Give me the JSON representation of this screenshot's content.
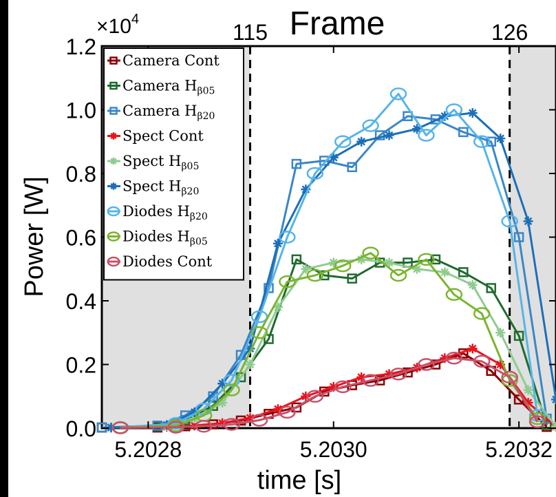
{
  "chart_data": {
    "type": "line",
    "title": "Frame",
    "xlabel": "time [s]",
    "ylabel": "Power [W]",
    "y_multiplier_label": "×10",
    "y_multiplier_exponent": "4",
    "xlim": [
      5.20275,
      5.20324
    ],
    "ylim": [
      0,
      12000
    ],
    "x_ticks": [
      5.2028,
      5.203,
      5.2032
    ],
    "x_tick_labels": [
      "5.2028",
      "5.2030",
      "5.2032"
    ],
    "y_ticks": [
      0,
      2000,
      4000,
      6000,
      8000,
      10000,
      12000
    ],
    "y_tick_labels": [
      "0.0",
      "0.2",
      "0.4",
      "0.6",
      "0.8",
      "1.0",
      "1.2"
    ],
    "grid": false,
    "frame_markers": [
      {
        "label": "115",
        "x": 5.20291
      },
      {
        "label": "126",
        "x": 5.20319
      }
    ],
    "shaded_regions": [
      {
        "x0": 5.20275,
        "x1": 5.20291,
        "color": "#e0e0e0"
      },
      {
        "x0": 5.20319,
        "x1": 5.20324,
        "color": "#e0e0e0"
      }
    ],
    "legend": {
      "position": "top-left"
    },
    "series": [
      {
        "name": "Camera Cont",
        "label_main": "Camera Cont",
        "label_sub": "",
        "color": "#8b0000",
        "marker": "square",
        "x": [
          5.20275,
          5.20281,
          5.20284,
          5.20287,
          5.2029,
          5.20293,
          5.20296,
          5.20299,
          5.20302,
          5.20305,
          5.20308,
          5.20311,
          5.20314,
          5.20317,
          5.2032,
          5.20323
        ],
        "y": [
          20,
          20,
          60,
          120,
          240,
          450,
          650,
          1150,
          1350,
          1500,
          1750,
          2000,
          2350,
          1800,
          900,
          40
        ]
      },
      {
        "name": "Camera Hβ05",
        "label_main": "Camera H",
        "label_sub": "β05",
        "color": "#1e6b2e",
        "marker": "square",
        "x": [
          5.20275,
          5.20281,
          5.20284,
          5.20287,
          5.2029,
          5.20293,
          5.20296,
          5.20299,
          5.20302,
          5.20305,
          5.20308,
          5.20311,
          5.20314,
          5.20317,
          5.2032,
          5.20323
        ],
        "y": [
          20,
          50,
          250,
          700,
          1600,
          2800,
          5300,
          4800,
          4700,
          5200,
          5200,
          5300,
          4900,
          4400,
          2900,
          100
        ]
      },
      {
        "name": "Camera Hβ20",
        "label_main": "Camera H",
        "label_sub": "β20",
        "color": "#3a86c8",
        "marker": "square",
        "x": [
          5.20275,
          5.20281,
          5.20284,
          5.20287,
          5.2029,
          5.20293,
          5.20296,
          5.20299,
          5.20302,
          5.20305,
          5.20308,
          5.20311,
          5.20314,
          5.20317,
          5.2032,
          5.20323
        ],
        "y": [
          20,
          80,
          400,
          1000,
          2300,
          4400,
          8300,
          8400,
          8200,
          9200,
          9800,
          9700,
          9300,
          9000,
          6000,
          300
        ]
      },
      {
        "name": "Spect Cont",
        "label_main": "Spect Cont",
        "label_sub": "",
        "color": "#e8141c",
        "marker": "star",
        "x": [
          5.20276,
          5.20282,
          5.20285,
          5.20288,
          5.20291,
          5.20294,
          5.20297,
          5.203,
          5.20303,
          5.20306,
          5.20309,
          5.20312,
          5.20315,
          5.20318,
          5.20321,
          5.20324
        ],
        "y": [
          20,
          40,
          80,
          160,
          320,
          600,
          1000,
          1300,
          1600,
          1700,
          1900,
          2200,
          2500,
          2000,
          800,
          40
        ]
      },
      {
        "name": "Spect Hβ05",
        "label_main": "Spect H",
        "label_sub": "β05",
        "color": "#8fcc8f",
        "marker": "star",
        "x": [
          5.20276,
          5.20282,
          5.20285,
          5.20288,
          5.20291,
          5.20294,
          5.20297,
          5.203,
          5.20303,
          5.20306,
          5.20309,
          5.20312,
          5.20315,
          5.20318,
          5.20321,
          5.20324
        ],
        "y": [
          20,
          60,
          300,
          800,
          2000,
          3800,
          5000,
          5200,
          5300,
          5200,
          5000,
          4900,
          4500,
          3000,
          1200,
          50
        ]
      },
      {
        "name": "Spect Hβ20",
        "label_main": "Spect H",
        "label_sub": "β20",
        "color": "#1b6fb8",
        "marker": "star",
        "x": [
          5.20276,
          5.20282,
          5.20285,
          5.20288,
          5.20291,
          5.20294,
          5.20297,
          5.203,
          5.20303,
          5.20306,
          5.20309,
          5.20312,
          5.20315,
          5.20318,
          5.20321,
          5.20324
        ],
        "y": [
          20,
          100,
          500,
          1400,
          2500,
          5800,
          7500,
          8500,
          9000,
          9200,
          9400,
          9800,
          9900,
          9100,
          6500,
          900
        ]
      },
      {
        "name": "Diodes Hβ20",
        "label_main": "Diodes H",
        "label_sub": "β20",
        "color": "#56b4e9",
        "marker": "circle",
        "x": [
          5.20277,
          5.20283,
          5.20286,
          5.20289,
          5.20292,
          5.20295,
          5.20298,
          5.20301,
          5.20304,
          5.20307,
          5.2031,
          5.20313,
          5.20316,
          5.20319,
          5.20322
        ],
        "y": [
          20,
          150,
          600,
          1500,
          3500,
          6000,
          8000,
          9000,
          9500,
          10500,
          9200,
          10000,
          9000,
          6500,
          400
        ]
      },
      {
        "name": "Diodes Hβ05",
        "label_main": "Diodes H",
        "label_sub": "β05",
        "color": "#7ab52e",
        "marker": "circle",
        "x": [
          5.20277,
          5.20283,
          5.20286,
          5.20289,
          5.20292,
          5.20295,
          5.20298,
          5.20301,
          5.20304,
          5.20307,
          5.2031,
          5.20313,
          5.20316,
          5.20319,
          5.20322
        ],
        "y": [
          20,
          80,
          400,
          1200,
          3000,
          4600,
          4800,
          5100,
          5500,
          4800,
          5300,
          4200,
          3600,
          1500,
          300
        ]
      },
      {
        "name": "Diodes Cont",
        "label_main": "Diodes Cont",
        "label_sub": "",
        "color": "#c8506a",
        "marker": "circle",
        "x": [
          5.20277,
          5.20283,
          5.20286,
          5.20289,
          5.20292,
          5.20295,
          5.20298,
          5.20301,
          5.20304,
          5.20307,
          5.2031,
          5.20313,
          5.20316,
          5.20319,
          5.20322
        ],
        "y": [
          10,
          30,
          60,
          120,
          250,
          500,
          1000,
          1300,
          1500,
          1700,
          2000,
          2200,
          2100,
          1600,
          200
        ]
      }
    ]
  }
}
